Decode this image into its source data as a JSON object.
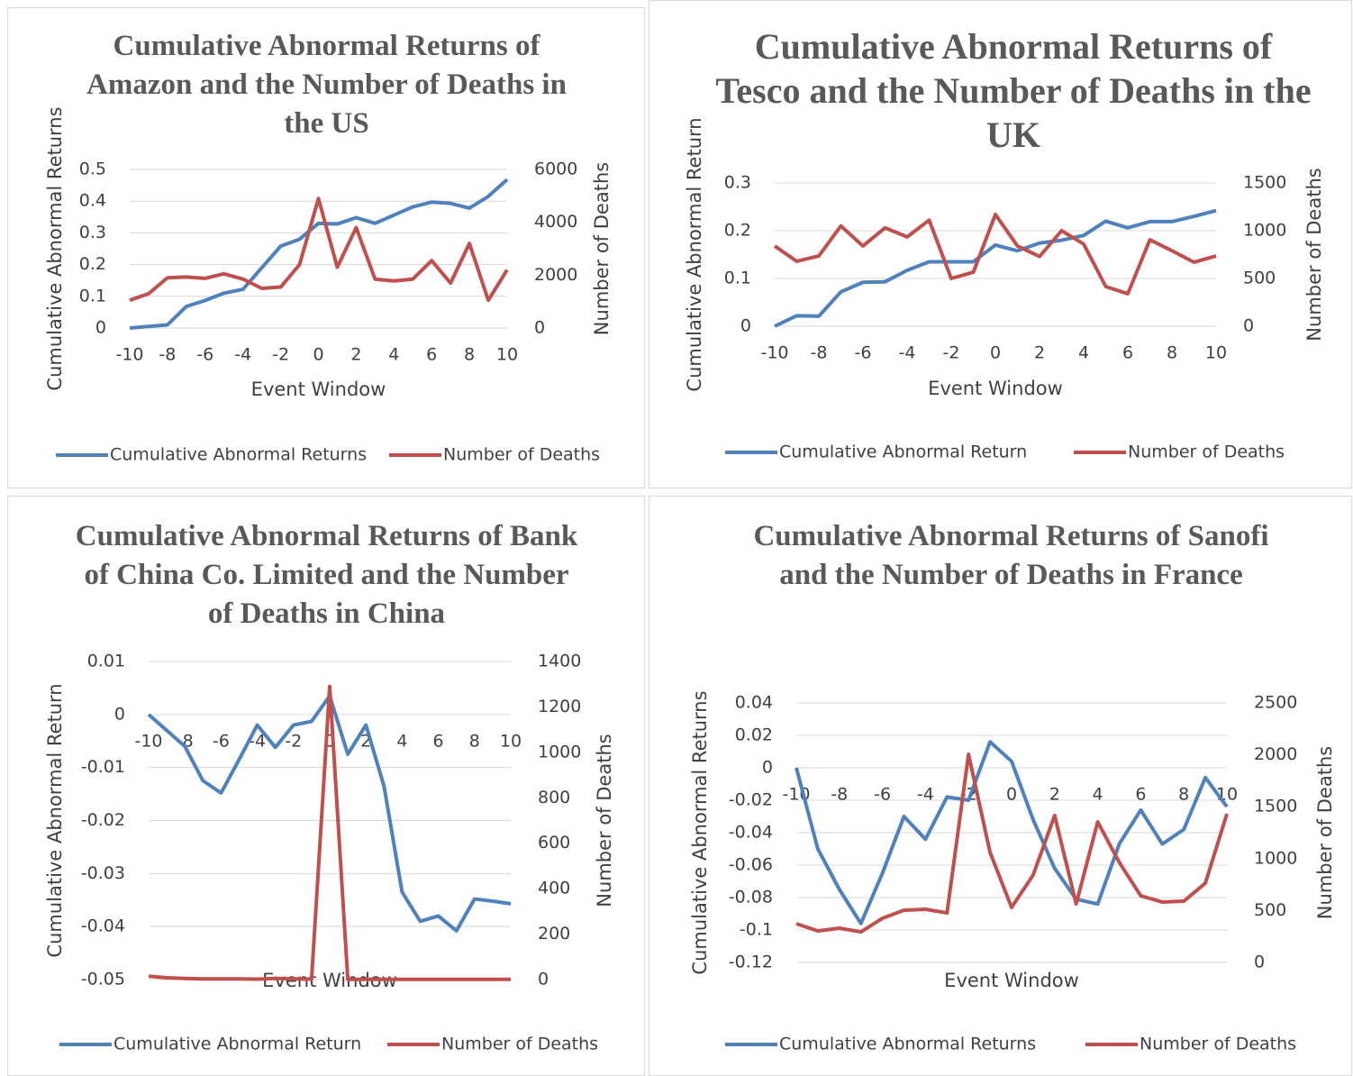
{
  "chart_data": [
    {
      "type": "line",
      "title": "Cumulative Abnormal Returns of Amazon and the Number of Deaths in the US",
      "x": [
        -10,
        -9,
        -8,
        -7,
        -6,
        -5,
        -4,
        -3,
        -2,
        -1,
        0,
        1,
        2,
        3,
        4,
        5,
        6,
        7,
        8,
        9,
        10
      ],
      "xlim": [
        -10,
        10
      ],
      "xticks": [
        -10,
        -8,
        -6,
        -4,
        -2,
        0,
        2,
        4,
        6,
        8,
        10
      ],
      "ylim": [
        0,
        0.5
      ],
      "yticks": [
        0,
        0.1,
        0.2,
        0.3,
        0.4,
        0.5
      ],
      "y2lim": [
        0,
        6000
      ],
      "y2ticks": [
        0,
        2000,
        4000,
        6000
      ],
      "x_label": "Event Window",
      "y_label": "Cumulative Abnormal Returns",
      "y2_label": "Number of Deaths",
      "grid": true,
      "legend": "bottom",
      "series": [
        {
          "name": "Cumulative Abnormal Returns",
          "color": "#4f81bd",
          "values": [
            0.0,
            0.005,
            0.01,
            0.068,
            0.087,
            0.11,
            0.122,
            0.19,
            0.258,
            0.28,
            0.33,
            0.328,
            0.348,
            0.33,
            0.356,
            0.382,
            0.397,
            0.393,
            0.378,
            0.415,
            0.468
          ]
        },
        {
          "name": "Number of Deaths",
          "color": "#c0504d",
          "axis": "y2",
          "values": [
            1050,
            1300,
            1900,
            1930,
            1880,
            2050,
            1850,
            1500,
            1550,
            2400,
            4900,
            2300,
            3800,
            1850,
            1780,
            1850,
            2550,
            1700,
            3200,
            1050,
            2200
          ]
        }
      ]
    },
    {
      "type": "line",
      "title": "Cumulative Abnormal Returns of Tesco and the Number of Deaths in the UK",
      "x": [
        -10,
        -9,
        -8,
        -7,
        -6,
        -5,
        -4,
        -3,
        -2,
        -1,
        0,
        1,
        2,
        3,
        4,
        5,
        6,
        7,
        8,
        9,
        10
      ],
      "xlim": [
        -10,
        10
      ],
      "xticks": [
        -10,
        -8,
        -6,
        -4,
        -2,
        0,
        2,
        4,
        6,
        8,
        10
      ],
      "ylim": [
        0,
        0.3
      ],
      "yticks": [
        0,
        0.1,
        0.2,
        0.3
      ],
      "y2lim": [
        0,
        1500
      ],
      "y2ticks": [
        0,
        500,
        1000,
        1500
      ],
      "x_label": "Event Window",
      "y_label": "Cumulative Abnormal Return",
      "y2_label": "Number of Deaths",
      "grid": true,
      "legend": "bottom",
      "series": [
        {
          "name": "Cumulative Abnormal Return",
          "color": "#4f81bd",
          "values": [
            0,
            0.022,
            0.021,
            0.072,
            0.092,
            0.093,
            0.117,
            0.135,
            0.135,
            0.135,
            0.17,
            0.158,
            0.174,
            0.18,
            0.19,
            0.22,
            0.206,
            0.219,
            0.219,
            0.23,
            0.242
          ]
        },
        {
          "name": "Number of Deaths",
          "color": "#c0504d",
          "axis": "y2",
          "values": [
            840,
            680,
            735,
            1050,
            840,
            1030,
            935,
            1110,
            500,
            565,
            1170,
            840,
            730,
            1000,
            860,
            415,
            340,
            905,
            790,
            670,
            735
          ]
        }
      ]
    },
    {
      "type": "line",
      "title": "Cumulative Abnormal Returns of Bank of China Co. Limited and the Number of Deaths in China",
      "x": [
        -10,
        -9,
        -8,
        -7,
        -6,
        -5,
        -4,
        -3,
        -2,
        -1,
        0,
        1,
        2,
        3,
        4,
        5,
        6,
        7,
        8,
        9,
        10
      ],
      "xlim": [
        -10,
        10
      ],
      "xticks": [
        -10,
        -8,
        -6,
        -4,
        -2,
        0,
        2,
        4,
        6,
        8,
        10
      ],
      "ylim": [
        -0.05,
        0.01
      ],
      "yticks": [
        -0.05,
        -0.04,
        -0.03,
        -0.02,
        -0.01,
        0,
        0.01
      ],
      "y2lim": [
        0,
        1400
      ],
      "y2ticks": [
        0,
        200,
        400,
        600,
        800,
        1000,
        1200,
        1400
      ],
      "x_label": "Event Window",
      "y_label": "Cumulative Abnormal Return",
      "y2_label": "Number of Deaths",
      "grid": true,
      "legend": "bottom",
      "series": [
        {
          "name": "Cumulative Abnormal Return",
          "color": "#4f81bd",
          "values": [
            0,
            -0.003,
            -0.006,
            -0.0125,
            -0.0148,
            -0.0085,
            -0.002,
            -0.0062,
            -0.002,
            -0.0013,
            0.0035,
            -0.0075,
            -0.002,
            -0.0135,
            -0.0335,
            -0.039,
            -0.038,
            -0.0408,
            -0.0348,
            -0.0352,
            -0.0357
          ]
        },
        {
          "name": "Number of Deaths",
          "color": "#c0504d",
          "axis": "y2",
          "values": [
            15,
            8,
            5,
            3,
            3,
            3,
            2,
            5,
            3,
            2,
            1290,
            1,
            1,
            1,
            1,
            1,
            1,
            1,
            1,
            1,
            1
          ]
        }
      ]
    },
    {
      "type": "line",
      "title": "Cumulative Abnormal Returns of Sanofi and the Number of Deaths in France",
      "x": [
        -10,
        -9,
        -8,
        -7,
        -6,
        -5,
        -4,
        -3,
        -2,
        -1,
        0,
        1,
        2,
        3,
        4,
        5,
        6,
        7,
        8,
        9,
        10
      ],
      "xlim": [
        -10,
        10
      ],
      "xticks": [
        -10,
        -8,
        -6,
        -4,
        -2,
        0,
        2,
        4,
        6,
        8,
        10
      ],
      "ylim": [
        -0.12,
        0.04
      ],
      "yticks": [
        -0.12,
        -0.1,
        -0.08,
        -0.06,
        -0.04,
        -0.02,
        0,
        0.02,
        0.04
      ],
      "y2lim": [
        0,
        2500
      ],
      "y2ticks": [
        0,
        500,
        1000,
        1500,
        2000,
        2500
      ],
      "x_label": "Event Window",
      "y_label": "Cumulative Abnormal Returns",
      "y2_label": "Number of Deaths",
      "grid": true,
      "legend": "bottom",
      "series": [
        {
          "name": "Cumulative Abnormal Returns",
          "color": "#4f81bd",
          "values": [
            0,
            -0.05,
            -0.075,
            -0.096,
            -0.065,
            -0.03,
            -0.044,
            -0.018,
            -0.02,
            0.016,
            0.004,
            -0.032,
            -0.062,
            -0.081,
            -0.084,
            -0.047,
            -0.026,
            -0.047,
            -0.038,
            -0.006,
            -0.024
          ]
        },
        {
          "name": "Number of Deaths",
          "color": "#c0504d",
          "axis": "y2",
          "values": [
            373,
            304,
            330,
            295,
            425,
            503,
            512,
            477,
            2005,
            1060,
            530,
            842,
            1415,
            564,
            1354,
            964,
            642,
            582,
            590,
            764,
            1432
          ]
        }
      ]
    }
  ]
}
